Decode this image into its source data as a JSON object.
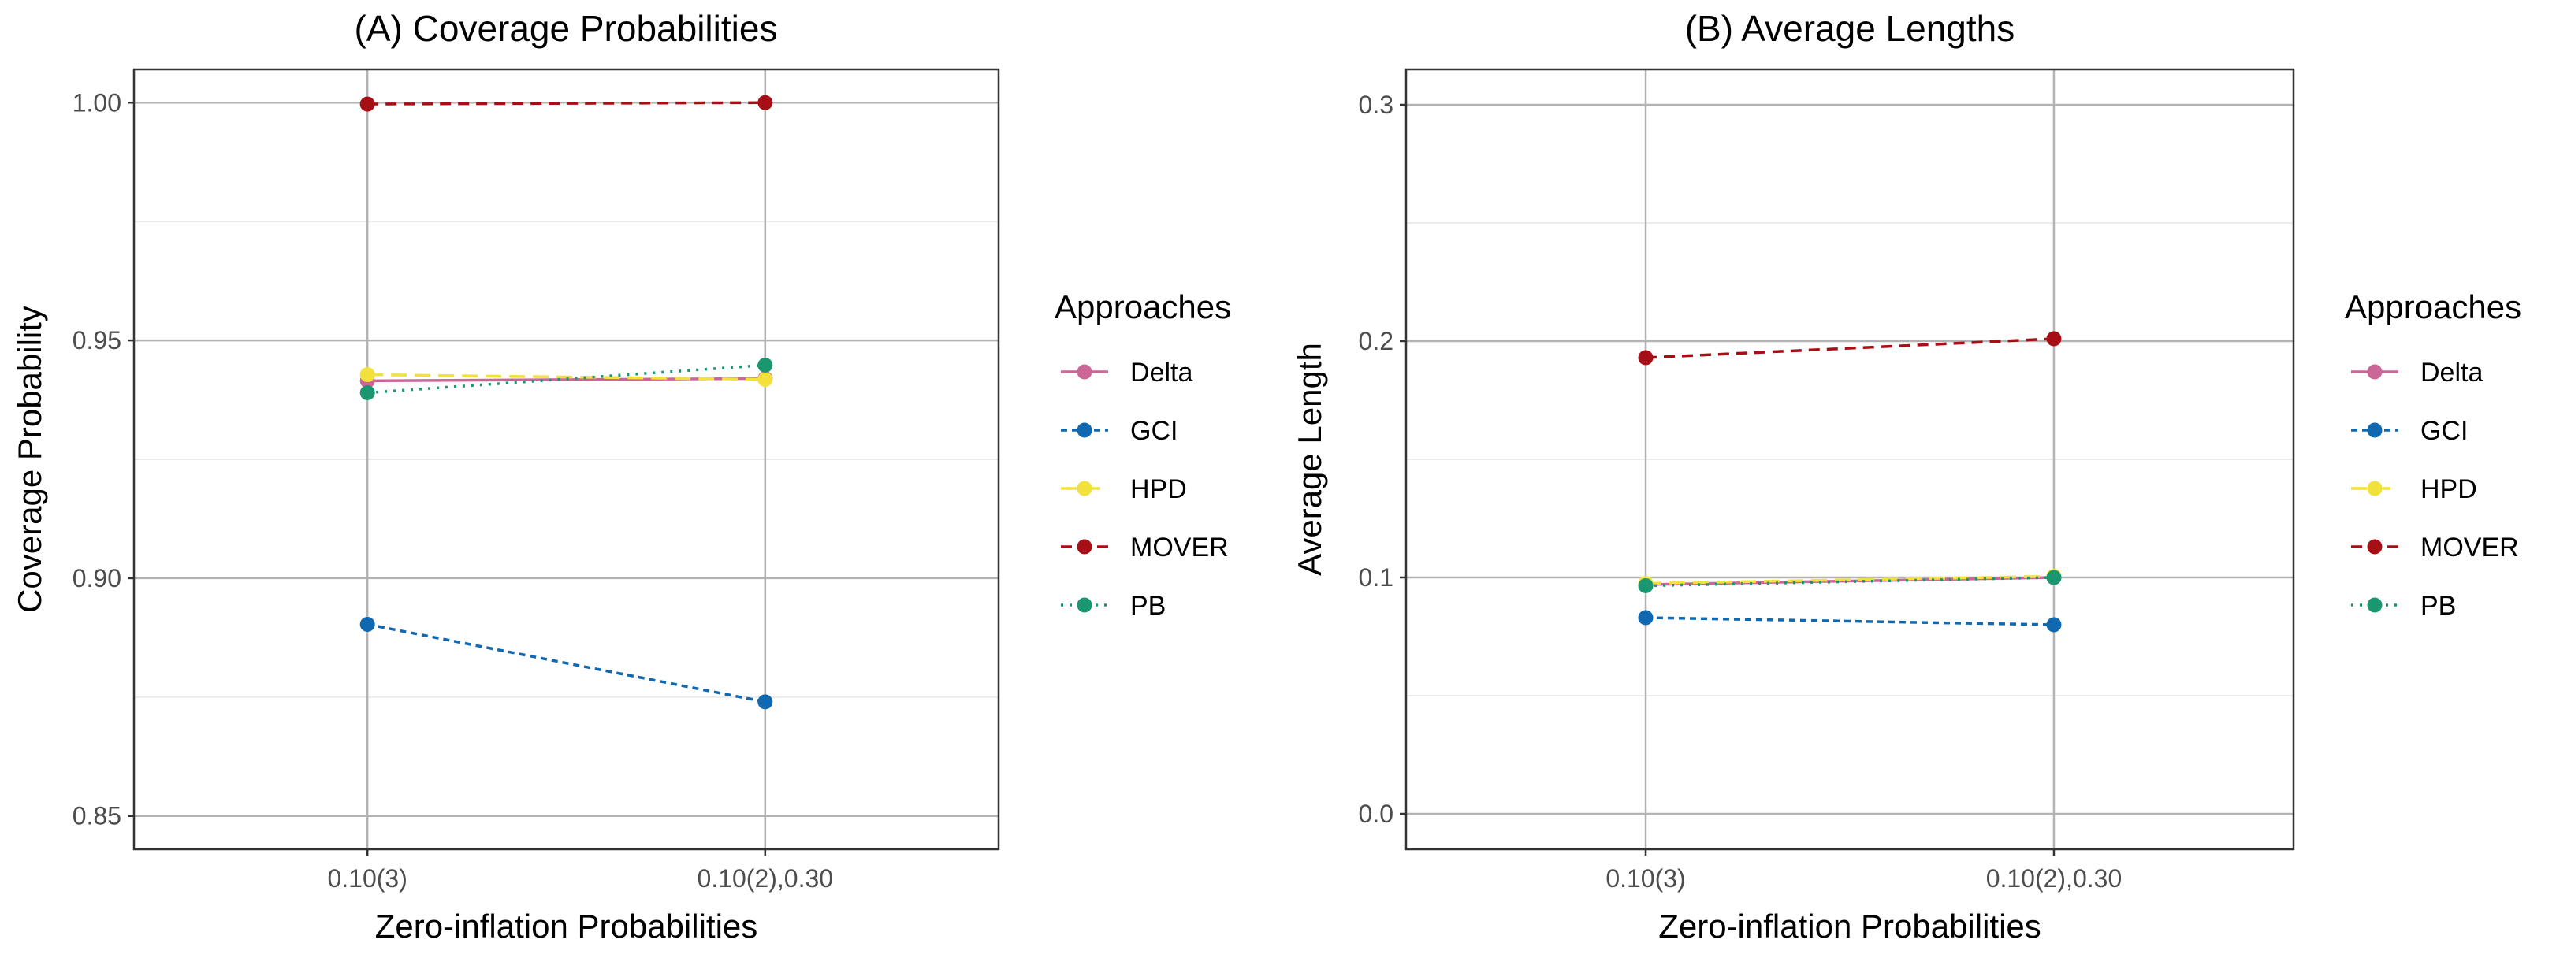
{
  "chart_data": [
    {
      "type": "line",
      "title": "(A) Coverage Probabilities",
      "xlabel": "Zero-inflation Probabilities",
      "ylabel": "Coverage Probability",
      "categories": [
        "0.10(3)",
        "0.10(2),0.30"
      ],
      "ylim": [
        0.843,
        1.007
      ],
      "yticks": [
        0.85,
        0.9,
        0.95,
        1.0
      ],
      "ytick_labels": [
        "0.85",
        "0.90",
        "0.95",
        "1.00"
      ],
      "grid": true,
      "legend": {
        "title": "Approaches",
        "position": "right"
      },
      "series": [
        {
          "name": "Delta",
          "values": [
            0.9415,
            0.942
          ],
          "color": "#CC6699",
          "dash": "solid"
        },
        {
          "name": "GCI",
          "values": [
            0.8903,
            0.874
          ],
          "color": "#0F68B0",
          "dash": "dashed-short"
        },
        {
          "name": "HPD",
          "values": [
            0.9428,
            0.9418
          ],
          "color": "#F2E03B",
          "dash": "dashed-long"
        },
        {
          "name": "MOVER",
          "values": [
            0.9997,
            1.0
          ],
          "color": "#A50F15",
          "dash": "dashed"
        },
        {
          "name": "PB",
          "values": [
            0.939,
            0.9448
          ],
          "color": "#1A9670",
          "dash": "dotted"
        }
      ]
    },
    {
      "type": "line",
      "title": "(B) Average Lengths",
      "xlabel": "Zero-inflation Probabilities",
      "ylabel": "Average Length",
      "categories": [
        "0.10(3)",
        "0.10(2),0.30"
      ],
      "ylim": [
        -0.015,
        0.315
      ],
      "yticks": [
        0.0,
        0.1,
        0.2,
        0.3
      ],
      "ytick_labels": [
        "0.0",
        "0.1",
        "0.2",
        "0.3"
      ],
      "grid": true,
      "legend": {
        "title": "Approaches",
        "position": "right"
      },
      "series": [
        {
          "name": "Delta",
          "values": [
            0.097,
            0.1
          ],
          "color": "#CC6699",
          "dash": "solid"
        },
        {
          "name": "GCI",
          "values": [
            0.083,
            0.08
          ],
          "color": "#0F68B0",
          "dash": "dashed-short"
        },
        {
          "name": "HPD",
          "values": [
            0.0975,
            0.1005
          ],
          "color": "#F2E03B",
          "dash": "dashed-long"
        },
        {
          "name": "MOVER",
          "values": [
            0.193,
            0.201
          ],
          "color": "#A50F15",
          "dash": "dashed"
        },
        {
          "name": "PB",
          "values": [
            0.0965,
            0.1
          ],
          "color": "#1A9670",
          "dash": "dotted"
        }
      ]
    }
  ]
}
